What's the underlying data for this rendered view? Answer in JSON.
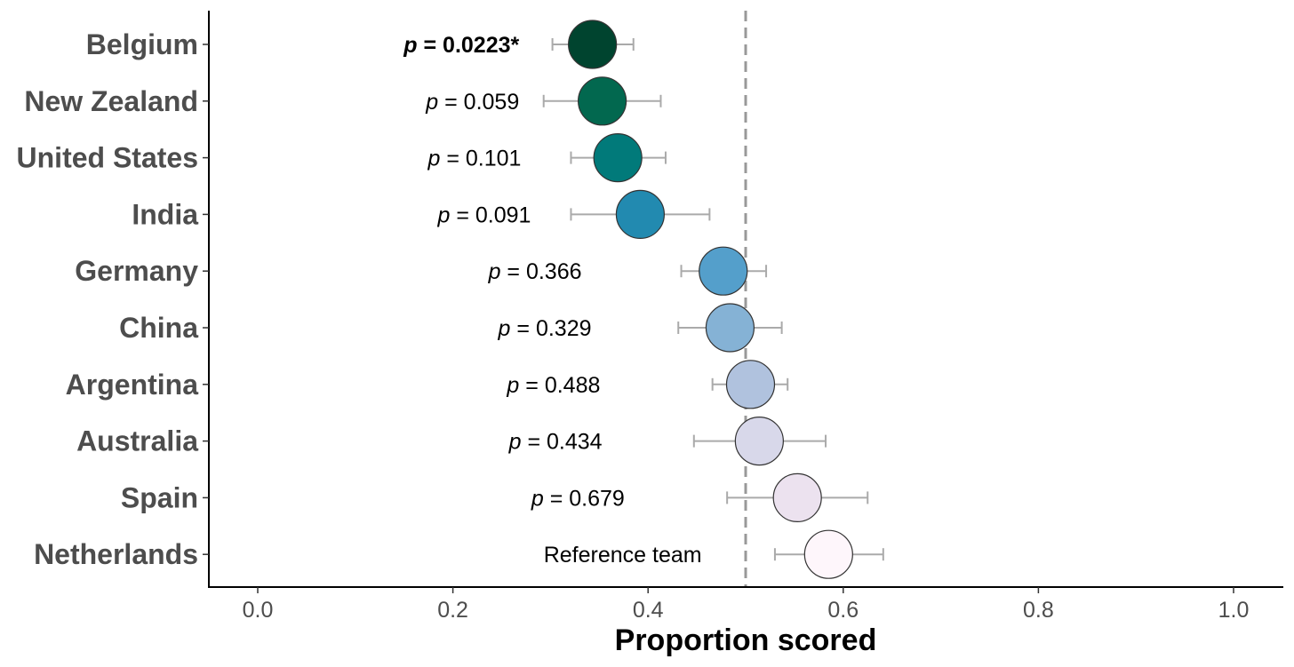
{
  "chart_data": {
    "type": "dot-errorbar",
    "xlabel": "Proportion scored",
    "xlim": [
      -0.05,
      1.05
    ],
    "xticks": [
      0.0,
      0.2,
      0.4,
      0.6,
      0.8,
      1.0
    ],
    "xtick_labels": [
      "0.0",
      "0.2",
      "0.4",
      "0.6",
      "0.8",
      "1.0"
    ],
    "reference_line": 0.5,
    "grid": false,
    "rows": [
      {
        "country": "Belgium",
        "value": 0.343,
        "lo": 0.302,
        "hi": 0.385,
        "color": "#00442f",
        "annotation": "p = 0.0223*",
        "p_prefix": "p",
        "p_text": " = 0.0223*",
        "bold": true,
        "label_end_x": 0.268
      },
      {
        "country": "New Zealand",
        "value": 0.353,
        "lo": 0.293,
        "hi": 0.413,
        "color": "#02684f",
        "annotation": "p = 0.059",
        "p_prefix": "p",
        "p_text": " = 0.059",
        "bold": false,
        "label_end_x": 0.268
      },
      {
        "country": "United States",
        "value": 0.369,
        "lo": 0.321,
        "hi": 0.418,
        "color": "#017a7a",
        "annotation": "p = 0.101",
        "p_prefix": "p",
        "p_text": " = 0.101",
        "bold": false,
        "label_end_x": 0.27
      },
      {
        "country": "India",
        "value": 0.392,
        "lo": 0.321,
        "hi": 0.463,
        "color": "#228ab0",
        "annotation": "p = 0.091",
        "p_prefix": "p",
        "p_text": " = 0.091",
        "bold": false,
        "label_end_x": 0.28
      },
      {
        "country": "Germany",
        "value": 0.477,
        "lo": 0.434,
        "hi": 0.521,
        "color": "#549fcb",
        "annotation": "p = 0.366",
        "p_prefix": "p",
        "p_text": " = 0.366",
        "bold": false,
        "label_end_x": 0.332
      },
      {
        "country": "China",
        "value": 0.484,
        "lo": 0.431,
        "hi": 0.537,
        "color": "#85b2d5",
        "annotation": "p = 0.329",
        "p_prefix": "p",
        "p_text": " = 0.329",
        "bold": false,
        "label_end_x": 0.342
      },
      {
        "country": "Argentina",
        "value": 0.505,
        "lo": 0.466,
        "hi": 0.543,
        "color": "#b0c2de",
        "annotation": "p = 0.488",
        "p_prefix": "p",
        "p_text": " = 0.488",
        "bold": false,
        "label_end_x": 0.351
      },
      {
        "country": "Australia",
        "value": 0.514,
        "lo": 0.447,
        "hi": 0.582,
        "color": "#d8d8ea",
        "annotation": "p = 0.434",
        "p_prefix": "p",
        "p_text": " = 0.434",
        "bold": false,
        "label_end_x": 0.353
      },
      {
        "country": "Spain",
        "value": 0.553,
        "lo": 0.481,
        "hi": 0.625,
        "color": "#ece2ef",
        "annotation": "p = 0.679",
        "p_prefix": "p",
        "p_text": " = 0.679",
        "bold": false,
        "label_end_x": 0.376
      },
      {
        "country": "Netherlands",
        "value": 0.585,
        "lo": 0.53,
        "hi": 0.641,
        "color": "#fef6fb",
        "annotation": "Reference team",
        "p_prefix": "",
        "p_text": "Reference team",
        "bold": false,
        "label_end_x": 0.455
      }
    ]
  }
}
